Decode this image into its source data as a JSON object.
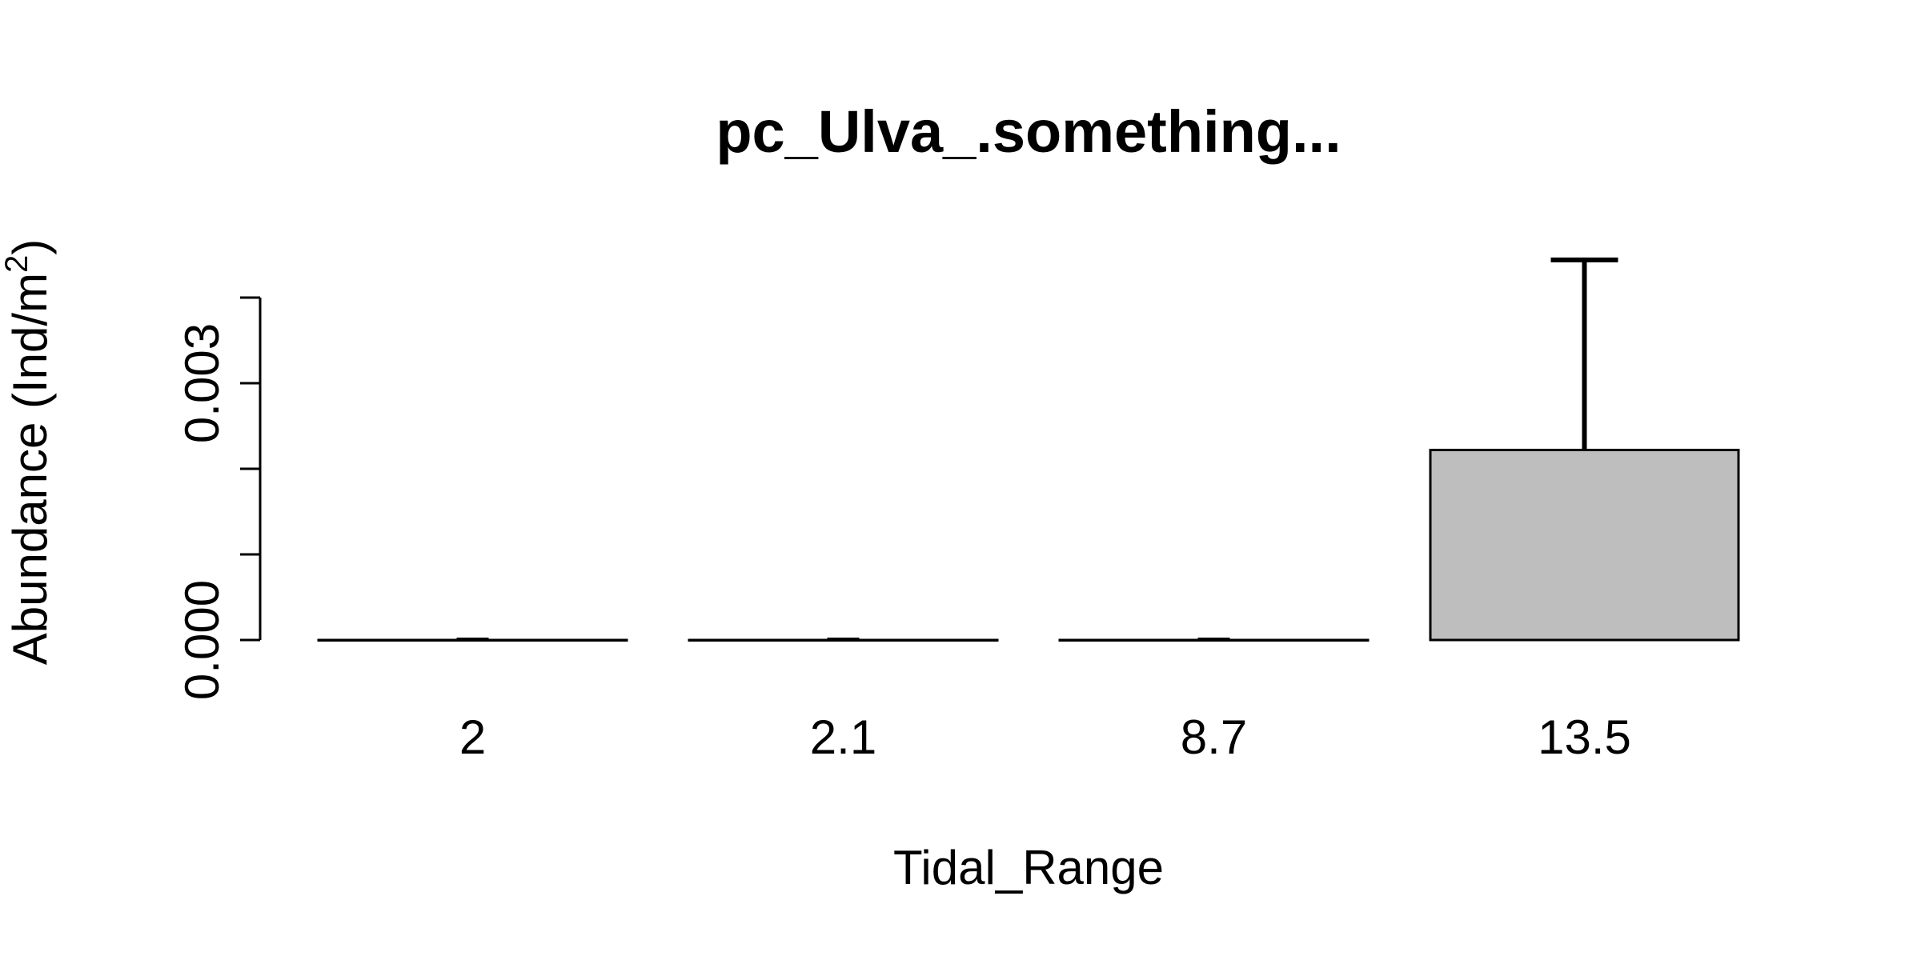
{
  "chart_data": {
    "type": "bar",
    "title": "pc_Ulva_.something...",
    "xlabel": "Tidal_Range",
    "ylabel_main": "Abundance (Ind/m",
    "ylabel_sup": "2",
    "ylabel_end": ")",
    "categories": [
      "2",
      "2.1",
      "8.7",
      "13.5"
    ],
    "values": [
      0,
      0,
      0,
      0.00222
    ],
    "error_upper": [
      0,
      0,
      0,
      0.00444
    ],
    "ylim": [
      0,
      0.004
    ],
    "yticks": [
      0,
      0.001,
      0.002,
      0.003,
      0.004
    ],
    "ytick_labels": [
      "0.000",
      "",
      "",
      "0.003",
      ""
    ],
    "bar_color": "#bebebe",
    "grid": false,
    "legend": "none"
  }
}
